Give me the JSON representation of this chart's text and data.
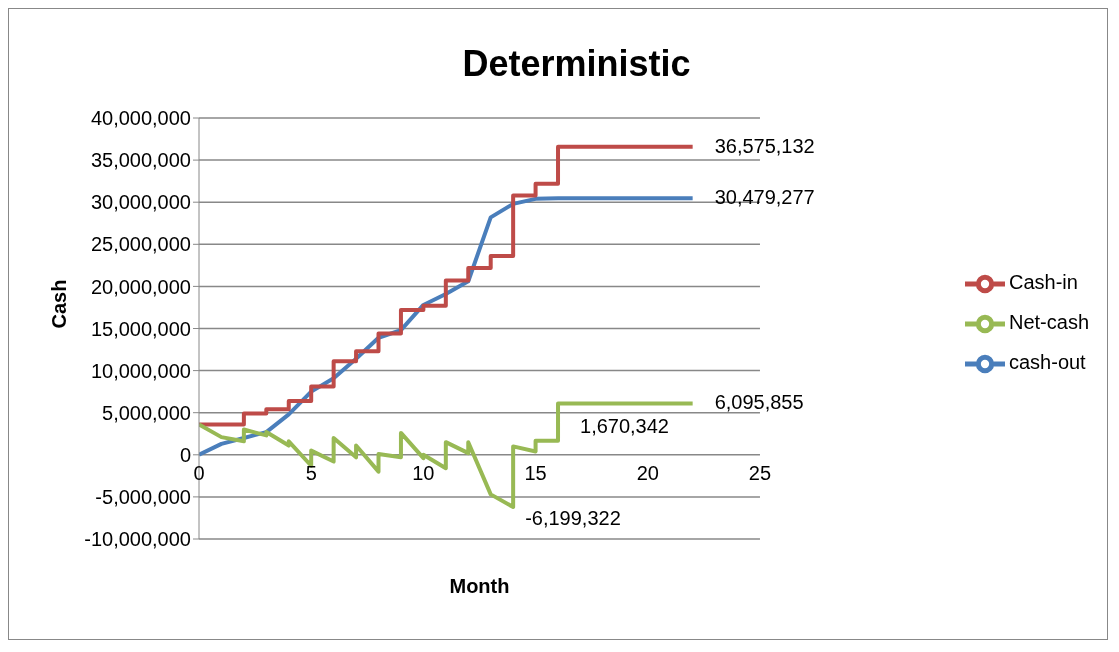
{
  "chart_data": {
    "type": "line",
    "title": "Deterministic",
    "xlabel": "Month",
    "ylabel": "Cash",
    "xlim": [
      0,
      25
    ],
    "xticks": [
      0,
      5,
      10,
      15,
      20,
      25
    ],
    "ylim": [
      -10000000,
      40000000
    ],
    "yticks": [
      {
        "value": -10000000,
        "label": "-10,000,000"
      },
      {
        "value": -5000000,
        "label": "-5,000,000"
      },
      {
        "value": 0,
        "label": "0"
      },
      {
        "value": 5000000,
        "label": "5,000,000"
      },
      {
        "value": 10000000,
        "label": "10,000,000"
      },
      {
        "value": 15000000,
        "label": "15,000,000"
      },
      {
        "value": 20000000,
        "label": "20,000,000"
      },
      {
        "value": 25000000,
        "label": "25,000,000"
      },
      {
        "value": 30000000,
        "label": "30,000,000"
      },
      {
        "value": 35000000,
        "label": "35,000,000"
      },
      {
        "value": 40000000,
        "label": "40,000,000"
      }
    ],
    "grid": "y",
    "legend": "right",
    "line_style": "solid",
    "series": [
      {
        "name": "cash-out",
        "color": "#4a7ebb",
        "x": [
          0,
          1,
          2,
          3,
          4,
          5,
          6,
          7,
          8,
          9,
          10,
          11,
          12,
          13,
          14,
          15,
          16,
          22
        ],
        "values": [
          0,
          1300000,
          2000000,
          2700000,
          4800000,
          7500000,
          9100000,
          11400000,
          13900000,
          14800000,
          17800000,
          19100000,
          20600000,
          28200000,
          29800000,
          30400000,
          30479277,
          30479277
        ]
      },
      {
        "name": "Cash-in",
        "color": "#be4b48",
        "x": [
          0,
          2,
          2,
          3,
          3,
          4,
          4,
          5,
          5,
          6,
          6,
          7,
          7,
          8,
          8,
          9,
          9,
          10,
          10,
          11,
          11,
          12,
          12,
          13,
          13,
          14,
          14,
          15,
          15,
          16,
          16,
          22
        ],
        "values": [
          3600000,
          3600000,
          4900000,
          4900000,
          5400000,
          5400000,
          6400000,
          6400000,
          8100000,
          8100000,
          11100000,
          11100000,
          12300000,
          12300000,
          14400000,
          14400000,
          17200000,
          17200000,
          17700000,
          17700000,
          20700000,
          20700000,
          22200000,
          22200000,
          23600000,
          23600000,
          30800000,
          30800000,
          32200000,
          32200000,
          36575132,
          36575132
        ]
      },
      {
        "name": "Net-cash",
        "color": "#98b954",
        "x": [
          0,
          1,
          2,
          2,
          3,
          3,
          4,
          4,
          5,
          5,
          6,
          6,
          7,
          7,
          8,
          8,
          9,
          9,
          10,
          10,
          11,
          11,
          12,
          12,
          13,
          14,
          14,
          15,
          15,
          16,
          16,
          22
        ],
        "values": [
          3600000,
          2100000,
          1600000,
          3000000,
          2300000,
          2700000,
          1100000,
          1600000,
          -1300000,
          500000,
          -800000,
          2000000,
          -300000,
          1100000,
          -2000000,
          100000,
          -300000,
          2600000,
          -400000,
          0,
          -1600000,
          1500000,
          200000,
          1500000,
          -4700000,
          -6199322,
          1000000,
          400000,
          1670342,
          1670342,
          6095855,
          6095855
        ]
      }
    ],
    "annotations": [
      {
        "text": "36,575,132",
        "x": 22,
        "y": 36575132
      },
      {
        "text": "30,479,277",
        "x": 22,
        "y": 30479277
      },
      {
        "text": "6,095,855",
        "x": 22,
        "y": 6095855
      },
      {
        "text": "1,670,342",
        "x": 16,
        "y": 1670342
      },
      {
        "text": "-6,199,322",
        "x": 14,
        "y": -6199322
      }
    ]
  }
}
